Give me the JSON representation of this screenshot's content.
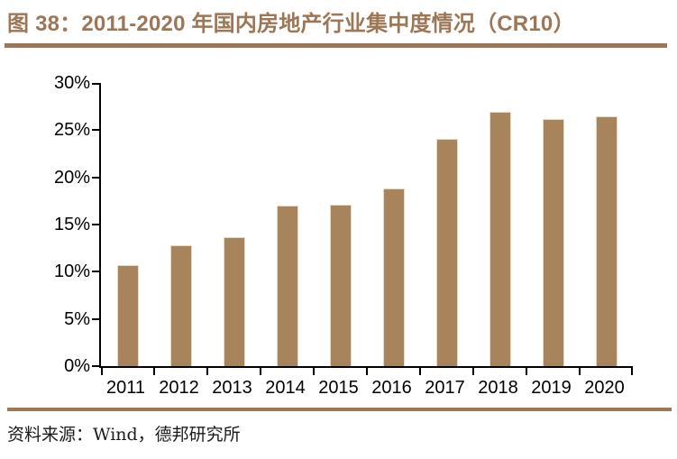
{
  "header": {
    "title": "图 38：2011-2020 年国内房地产行业集中度情况（CR10）"
  },
  "footer": {
    "source": "资料来源：Wind，德邦研究所"
  },
  "colors": {
    "bar": "#A8845C",
    "bar_edge": "#E7DAC6",
    "accent_brown": "#9D7656",
    "axis": "#000000",
    "label_text": "#000000",
    "source_text": "#1A1A1A",
    "background": "#FFFFFF"
  },
  "chart_data": {
    "type": "bar",
    "title": "2011-2020 年国内房地产行业集中度情况（CR10）",
    "categories": [
      "2011",
      "2012",
      "2013",
      "2014",
      "2015",
      "2016",
      "2017",
      "2018",
      "2019",
      "2020"
    ],
    "values": [
      10.7,
      12.8,
      13.7,
      17.0,
      17.1,
      18.8,
      24.1,
      26.9,
      26.2,
      26.5
    ],
    "unit": "%",
    "xlabel": "",
    "ylabel": "",
    "ylim": [
      0,
      30
    ],
    "ytick_step": 5,
    "ytick_labels": [
      "0%",
      "5%",
      "10%",
      "15%",
      "20%",
      "25%",
      "30%"
    ],
    "grid": false,
    "legend": false,
    "bar_color": "#A8845C"
  }
}
